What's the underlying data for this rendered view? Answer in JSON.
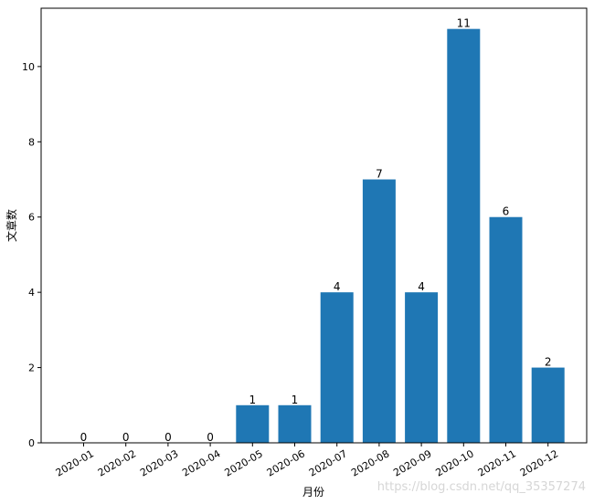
{
  "chart_data": {
    "type": "bar",
    "categories": [
      "2020-01",
      "2020-02",
      "2020-03",
      "2020-04",
      "2020-05",
      "2020-06",
      "2020-07",
      "2020-08",
      "2020-09",
      "2020-10",
      "2020-11",
      "2020-12"
    ],
    "values": [
      0,
      0,
      0,
      0,
      1,
      1,
      4,
      7,
      4,
      11,
      6,
      2
    ],
    "data_labels": [
      "0",
      "0",
      "0",
      "0",
      "1",
      "1",
      "4",
      "7",
      "4",
      "11",
      "6",
      "2"
    ],
    "xlabel": "月份",
    "ylabel": "文章数",
    "ylim": [
      0,
      11.55
    ],
    "yticks": [
      0,
      2,
      4,
      6,
      8,
      10
    ],
    "bar_color": "#1f77b4",
    "grid": false,
    "legend": "none"
  },
  "watermark": "https://blog.csdn.net/qq_35357274"
}
